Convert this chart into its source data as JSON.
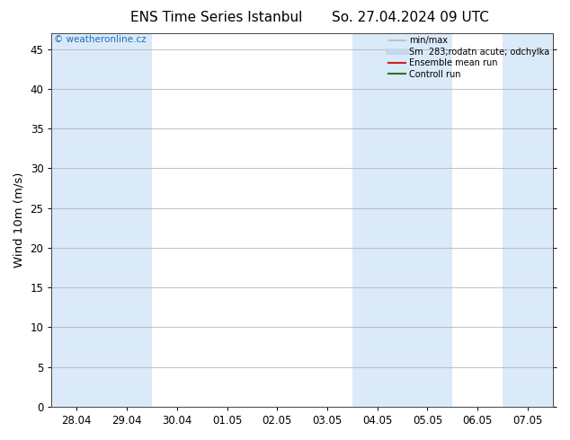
{
  "title_left": "ENS Time Series Istanbul",
  "title_right": "So. 27.04.2024 09 UTC",
  "ylabel": "Wind 10m (m/s)",
  "ylim": [
    0,
    47
  ],
  "yticks": [
    0,
    5,
    10,
    15,
    20,
    25,
    30,
    35,
    40,
    45
  ],
  "bg_color": "#ffffff",
  "plot_bg_color": "#ffffff",
  "shaded_band_color": "#daeaf8",
  "watermark_text": "© weatheronline.cz",
  "watermark_color": "#1a6fba",
  "legend_entries": [
    {
      "label": "min/max",
      "color": "#bbbbbb",
      "lw": 1.2,
      "ls": "-"
    },
    {
      "label": "Sm  283;rodatn acute; odchylka",
      "color": "#c5d8ec",
      "lw": 5,
      "ls": "-"
    },
    {
      "label": "Ensemble mean run",
      "color": "#cc2222",
      "lw": 1.5,
      "ls": "-"
    },
    {
      "label": "Controll run",
      "color": "#227722",
      "lw": 1.5,
      "ls": "-"
    }
  ],
  "x_tick_labels": [
    "28.04",
    "29.04",
    "30.04",
    "01.05",
    "02.05",
    "03.05",
    "04.05",
    "05.05",
    "06.05",
    "07.05"
  ],
  "x_tick_positions": [
    0,
    1,
    2,
    3,
    4,
    5,
    6,
    7,
    8,
    9
  ],
  "shaded_bands": [
    [
      -0.5,
      0.5
    ],
    [
      0.5,
      1.5
    ],
    [
      5.5,
      6.5
    ],
    [
      6.5,
      7.5
    ],
    [
      8.5,
      9.5
    ]
  ],
  "xlim": [
    -0.5,
    9.5
  ],
  "grid_color": "#aaaaaa",
  "grid_lw": 0.5,
  "tick_fontsize": 8.5,
  "label_fontsize": 9.5,
  "title_fontsize": 11,
  "watermark_fontsize": 7.5,
  "legend_fontsize": 7
}
